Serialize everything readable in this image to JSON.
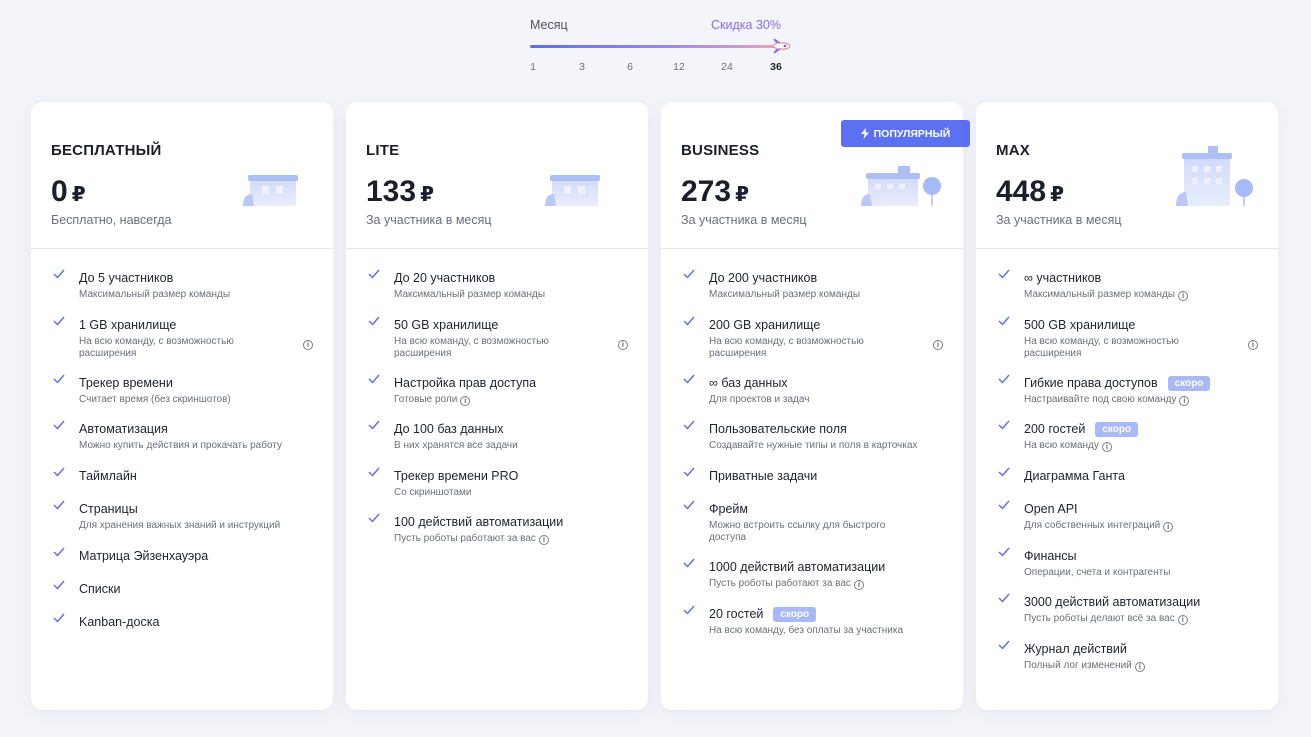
{
  "period": {
    "label_left": "Месяц",
    "label_right": "Скидка 30%",
    "ticks": [
      "1",
      "3",
      "6",
      "12",
      "24",
      "36"
    ],
    "selected": "36"
  },
  "colors": {
    "accent": "#5b71f1",
    "check": "#5b6ee8",
    "soon_badge": "#a9b8f7",
    "discount": "#8b6cf0"
  },
  "plans": [
    {
      "name": "БЕСПЛАТНЫЙ",
      "price": "0",
      "currency": "₽",
      "price_sub": "Бесплатно, навсегда",
      "features": [
        {
          "title": "До 5 участников",
          "desc": "Максимальный размер команды"
        },
        {
          "title": "1 GB хранилище",
          "desc": "На всю команду, с возможностью расширения"
        },
        {
          "title": "Трекер времени",
          "desc": "Считает время (без скриншотов)"
        },
        {
          "title": "Автоматизация",
          "desc": "Можно купить действия и прокачать работу"
        },
        {
          "title": "Таймлайн",
          "desc": ""
        },
        {
          "title": "Страницы",
          "desc": "Для хранения важных знаний и инструкций"
        },
        {
          "title": "Матрица Эйзенхауэра",
          "desc": ""
        },
        {
          "title": "Списки",
          "desc": ""
        },
        {
          "title": "Kanban-доска",
          "desc": ""
        }
      ]
    },
    {
      "name": "LITE",
      "price": "133",
      "currency": "₽",
      "price_sub": "За участника в месяц",
      "features": [
        {
          "title": "До 20 участников",
          "desc": "Максимальный размер команды"
        },
        {
          "title": "50 GB хранилище",
          "desc": "На всю команду, с возможностью расширения"
        },
        {
          "title": "Настройка прав доступа",
          "desc": "Готовые роли"
        },
        {
          "title": "До 100 баз данных",
          "desc": "В них хранятся все задачи"
        },
        {
          "title": "Трекер времени PRO",
          "desc": "Со скриншотами"
        },
        {
          "title": "100 действий автоматизации",
          "desc": "Пусть роботы работают за вас"
        }
      ]
    },
    {
      "name": "BUSINESS",
      "price": "273",
      "currency": "₽",
      "price_sub": "За участника в месяц",
      "badge": "ПОПУЛЯРНЫЙ",
      "features": [
        {
          "title": "До 200 участников",
          "desc": "Максимальный размер команды"
        },
        {
          "title": "200 GB хранилище",
          "desc": "На всю команду, с возможностью расширения"
        },
        {
          "title": "∞ баз данных",
          "desc": "Для проектов и задач"
        },
        {
          "title": "Пользовательские поля",
          "desc": "Создавайте нужные типы и поля в карточках"
        },
        {
          "title": "Приватные задачи",
          "desc": ""
        },
        {
          "title": "Фрейм",
          "desc": "Можно встроить ссылку для быстрого доступа"
        },
        {
          "title": "1000 действий автоматизации",
          "desc": "Пусть роботы работают за вас"
        },
        {
          "title": "20 гостей",
          "desc": "На всю команду, без оплаты за участника",
          "soon": "скоро"
        }
      ]
    },
    {
      "name": "MAX",
      "price": "448",
      "currency": "₽",
      "price_sub": "За участника в месяц",
      "features": [
        {
          "title": "∞ участников",
          "desc": "Максимальный размер команды"
        },
        {
          "title": "500 GB хранилище",
          "desc": "На всю команду, с возможностью расширения"
        },
        {
          "title": "Гибкие права доступов",
          "desc": "Настраивайте под свою команду",
          "soon": "скоро"
        },
        {
          "title": "200 гостей",
          "desc": "На всю команду",
          "soon": "скоро"
        },
        {
          "title": "Диаграмма Ганта",
          "desc": ""
        },
        {
          "title": "Open API",
          "desc": "Для собственных интеграций"
        },
        {
          "title": "Финансы",
          "desc": "Операции, счета и контрагенты"
        },
        {
          "title": "3000 действий автоматизации",
          "desc": "Пусть роботы делают всё за вас"
        },
        {
          "title": "Журнал действий",
          "desc": "Полный лог изменений"
        }
      ]
    }
  ]
}
